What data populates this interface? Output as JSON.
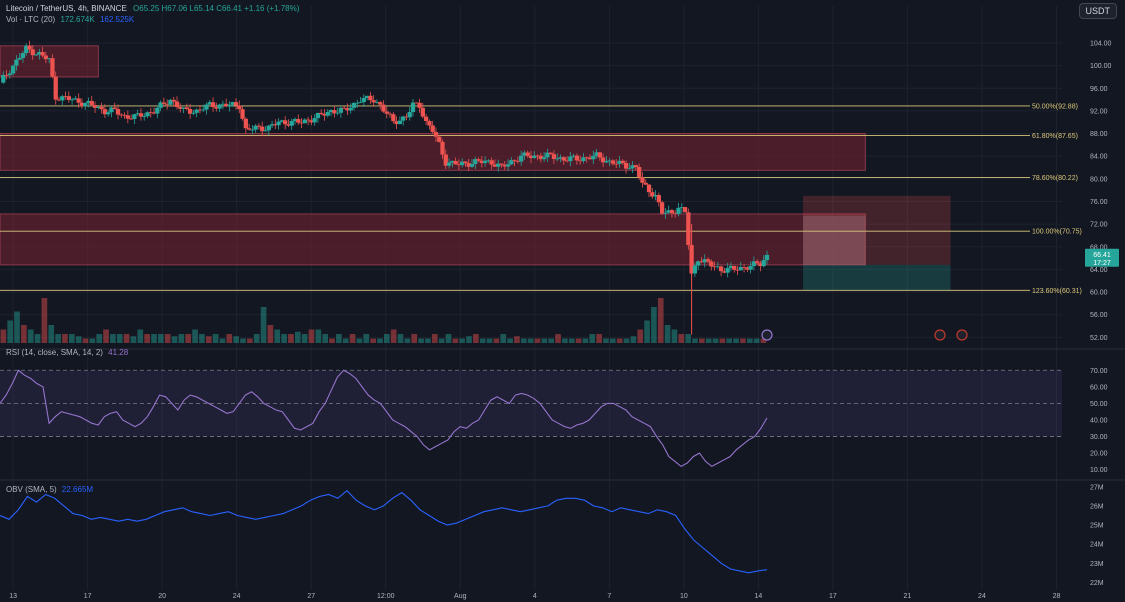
{
  "header": {
    "symbol": "Litecoin / TetherUS, 4h, BINANCE",
    "ohlc": "O65.25 H67.06 L65.14 C66.41 +1.16 (+1.78%)",
    "vol_title": "Vol · LTC (20)",
    "vol_value1": "172.674K",
    "vol_value2": "162.525K",
    "currency_button": "USDT"
  },
  "colors": {
    "background": "#131722",
    "up": "#26a69a",
    "down": "#ef5350",
    "fib": "#d9c77a",
    "zone": "#7a2233",
    "rsi": "#9575cd",
    "obv": "#2962ff",
    "grid": "#1e222d",
    "axis_text": "#b2b5be"
  },
  "chart_data": [
    {
      "type": "candlestick",
      "symbol": "LTCUSDT",
      "interval": "4h",
      "last_price": 66.41,
      "countdown": "17:27",
      "x_tick_labels": [
        "13",
        "17",
        "20",
        "24",
        "27",
        "12:00",
        "Aug",
        "4",
        "7",
        "10",
        "14",
        "17",
        "21",
        "24",
        "28"
      ],
      "y_ticks": [
        52,
        56,
        60,
        64,
        68,
        72,
        76,
        80,
        84,
        88,
        92,
        96,
        100,
        104
      ],
      "ylim": [
        51,
        107
      ],
      "close_path": [
        [
          0,
          97
        ],
        [
          4,
          100
        ],
        [
          8,
          103
        ],
        [
          12,
          102
        ],
        [
          15,
          101
        ],
        [
          17,
          94.5
        ],
        [
          22,
          94
        ],
        [
          28,
          93
        ],
        [
          32,
          92
        ],
        [
          35,
          92
        ],
        [
          38,
          91
        ],
        [
          42,
          91
        ],
        [
          47,
          92
        ],
        [
          52,
          94
        ],
        [
          56,
          92
        ],
        [
          60,
          92
        ],
        [
          64,
          93
        ],
        [
          66,
          93
        ],
        [
          70,
          93
        ],
        [
          73,
          93
        ],
        [
          75,
          88.5
        ],
        [
          78,
          89
        ],
        [
          82,
          89
        ],
        [
          85,
          90
        ],
        [
          88,
          90
        ],
        [
          92,
          90
        ],
        [
          97,
          91
        ],
        [
          101,
          92
        ],
        [
          105,
          92
        ],
        [
          110,
          94
        ],
        [
          114,
          94
        ],
        [
          116,
          93
        ],
        [
          120,
          90
        ],
        [
          124,
          91
        ],
        [
          126,
          93
        ],
        [
          128,
          93
        ],
        [
          130,
          90
        ],
        [
          132,
          88.5
        ],
        [
          134,
          86
        ],
        [
          136,
          83
        ],
        [
          140,
          82.5
        ],
        [
          145,
          83
        ],
        [
          150,
          83
        ],
        [
          153,
          82
        ],
        [
          156,
          83
        ],
        [
          159,
          84
        ],
        [
          162,
          84
        ],
        [
          168,
          84
        ],
        [
          172,
          83.5
        ],
        [
          176,
          83.5
        ],
        [
          182,
          84
        ],
        [
          186,
          83
        ],
        [
          190,
          82.5
        ],
        [
          194,
          82
        ],
        [
          196,
          79
        ],
        [
          198,
          78
        ],
        [
          200,
          77
        ],
        [
          202,
          74
        ],
        [
          205,
          74
        ],
        [
          207,
          75
        ],
        [
          209,
          74
        ],
        [
          211,
          63
        ],
        [
          213,
          66
        ],
        [
          216,
          65
        ],
        [
          220,
          64
        ],
        [
          224,
          64
        ],
        [
          228,
          64.5
        ],
        [
          232,
          65
        ],
        [
          234,
          66.4
        ]
      ],
      "volume_profile": [
        0.3,
        0.5,
        0.7,
        0.4,
        0.3,
        0.2,
        1.0,
        0.4,
        0.2,
        0.2,
        0.2,
        0.15,
        0.1,
        0.1,
        0.2,
        0.3,
        0.2,
        0.2,
        0.2,
        0.15,
        0.3,
        0.2,
        0.2,
        0.2,
        0.2,
        0.15,
        0.2,
        0.2,
        0.3,
        0.2,
        0.15,
        0.2,
        0.1,
        0.2,
        0.15,
        0.1,
        0.1,
        0.2,
        0.8,
        0.4,
        0.3,
        0.2,
        0.2,
        0.25,
        0.2,
        0.3,
        0.3,
        0.2,
        0.1,
        0.2,
        0.1,
        0.2,
        0.1,
        0.2,
        0.1,
        0.1,
        0.2,
        0.3,
        0.2,
        0.1,
        0.2,
        0.1,
        0.1,
        0.2,
        0.1,
        0.2,
        0.1,
        0.1,
        0.15,
        0.2,
        0.1,
        0.1,
        0.1,
        0.2,
        0.1,
        0.15,
        0.1,
        0.1,
        0.1,
        0.1,
        0.1,
        0.2,
        0.1,
        0.1,
        0.1,
        0.1,
        0.2,
        0.2,
        0.1,
        0.1,
        0.1,
        0.1,
        0.15,
        0.3,
        0.5,
        0.8,
        1.0,
        0.4,
        0.3,
        0.2,
        0.2,
        0.1,
        0.1,
        0.1,
        0.1,
        0.1,
        0.1,
        0.1,
        0.1,
        0.1,
        0.1,
        0.1
      ],
      "fib_levels": [
        {
          "label": "50.00%(92.88)",
          "value": 92.88
        },
        {
          "label": "61.80%(87.65)",
          "value": 87.65
        },
        {
          "label": "78.60%(80.22)",
          "value": 80.22
        },
        {
          "label": "100.00%(70.75)",
          "value": 70.75
        },
        {
          "label": "123.60%(60.31)",
          "value": 60.31
        }
      ],
      "zones": [
        {
          "from": 98,
          "to": 103.5,
          "x_end": 30
        },
        {
          "from": 81.5,
          "to": 88,
          "x_end": 264
        },
        {
          "from": 64.8,
          "to": 73.8,
          "x_end": 264
        }
      ],
      "position": {
        "entry": 64.8,
        "stop": 77.0,
        "target": 60.31
      },
      "x_range": [
        0,
        324
      ]
    },
    {
      "type": "line",
      "title": "RSI (14, close, SMA, 14, 2)",
      "value_label": "41.28",
      "y_ticks": [
        10,
        20,
        30,
        40,
        50,
        60,
        70
      ],
      "ylim": [
        5,
        78
      ],
      "band": [
        30,
        70
      ],
      "midline": 50,
      "values": [
        50,
        55,
        62,
        70,
        67,
        65,
        62,
        60,
        38,
        42,
        45,
        44,
        43,
        42,
        40,
        38,
        37,
        42,
        44,
        45,
        40,
        38,
        36,
        38,
        42,
        48,
        55,
        54,
        50,
        46,
        52,
        55,
        54,
        52,
        50,
        48,
        46,
        44,
        45,
        50,
        55,
        57,
        54,
        50,
        48,
        46,
        45,
        40,
        35,
        34,
        36,
        38,
        45,
        50,
        58,
        66,
        70,
        68,
        65,
        60,
        55,
        52,
        50,
        45,
        40,
        38,
        36,
        33,
        30,
        25,
        22,
        24,
        26,
        28,
        33,
        36,
        35,
        38,
        40,
        46,
        52,
        54,
        52,
        50,
        55,
        56,
        55,
        53,
        50,
        45,
        40,
        38,
        36,
        35,
        37,
        38,
        40,
        44,
        48,
        50,
        50,
        48,
        46,
        42,
        40,
        38,
        36,
        30,
        25,
        18,
        15,
        12,
        14,
        18,
        20,
        15,
        12,
        14,
        16,
        18,
        22,
        25,
        28,
        30,
        35,
        41.28
      ]
    },
    {
      "type": "line",
      "title": "OBV (SMA, 5)",
      "value_label": "22.665M",
      "y_ticks": [
        "27M",
        "26M",
        "25M",
        "24M",
        "23M",
        "22M"
      ],
      "ylim": [
        21.6,
        27.2
      ],
      "values": [
        25.5,
        25.3,
        25.8,
        26.5,
        26.2,
        26.6,
        26.4,
        26.0,
        25.6,
        25.5,
        25.3,
        25.4,
        25.3,
        25.2,
        25.3,
        25.2,
        25.3,
        25.5,
        25.7,
        25.8,
        25.9,
        25.7,
        25.6,
        25.5,
        25.6,
        25.7,
        25.5,
        25.4,
        25.3,
        25.4,
        25.5,
        25.6,
        25.8,
        26.0,
        26.3,
        26.5,
        26.6,
        26.4,
        26.8,
        26.3,
        26.0,
        25.8,
        26.0,
        26.4,
        26.7,
        26.3,
        25.8,
        25.5,
        25.2,
        25.0,
        25.1,
        25.3,
        25.5,
        25.7,
        25.8,
        25.9,
        25.8,
        25.7,
        25.8,
        25.9,
        26.0,
        26.3,
        26.4,
        26.4,
        26.3,
        26.0,
        25.9,
        25.7,
        25.9,
        25.8,
        25.7,
        25.6,
        25.8,
        25.7,
        25.5,
        24.8,
        24.2,
        23.8,
        23.4,
        23.0,
        22.7,
        22.6,
        22.5,
        22.6,
        22.665
      ]
    }
  ]
}
